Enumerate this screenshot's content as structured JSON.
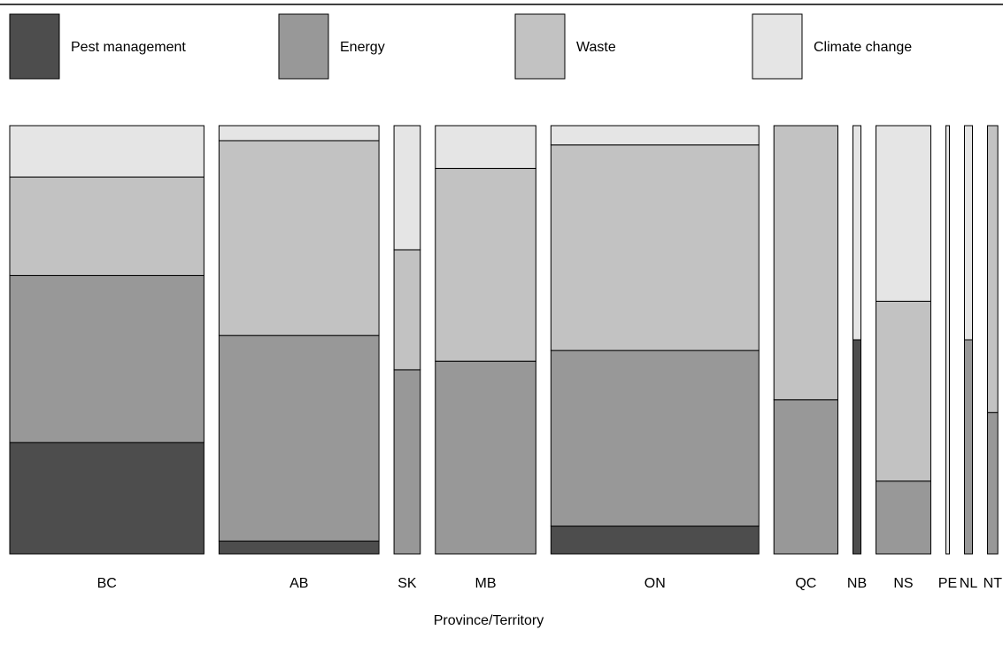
{
  "chart_data": {
    "type": "mosaic",
    "xlabel": "Province/Territory",
    "legend": {
      "position": "top",
      "entries": [
        {
          "label": "Pest management",
          "color": "#4d4d4d"
        },
        {
          "label": "Energy",
          "color": "#989898"
        },
        {
          "label": "Waste",
          "color": "#c2c2c2"
        },
        {
          "label": "Climate change",
          "color": "#e5e5e5"
        }
      ]
    },
    "series_order": [
      "Pest management",
      "Energy",
      "Waste",
      "Climate change"
    ],
    "categories": [
      "BC",
      "AB",
      "SK",
      "MB",
      "ON",
      "QC",
      "NB",
      "NS",
      "PE",
      "NL",
      "NT"
    ],
    "category_weights": [
      17,
      14,
      2.3,
      8.8,
      18.2,
      5.6,
      0.7,
      4.8,
      0.3,
      0.7,
      0.9
    ],
    "proportions": [
      [
        0.26,
        0.39,
        0.23,
        0.12
      ],
      [
        0.03,
        0.48,
        0.455,
        0.035
      ],
      [
        0,
        0.43,
        0.28,
        0.29
      ],
      [
        0,
        0.45,
        0.45,
        0.1
      ],
      [
        0.065,
        0.41,
        0.48,
        0.045
      ],
      [
        0,
        0.36,
        0.64,
        0
      ],
      [
        0.5,
        0,
        0,
        0.5
      ],
      [
        0,
        0.17,
        0.42,
        0.41
      ],
      [
        0,
        0,
        0,
        1.0
      ],
      [
        0,
        0.5,
        0,
        0.5
      ],
      [
        0,
        0.33,
        0.67,
        0
      ]
    ]
  }
}
